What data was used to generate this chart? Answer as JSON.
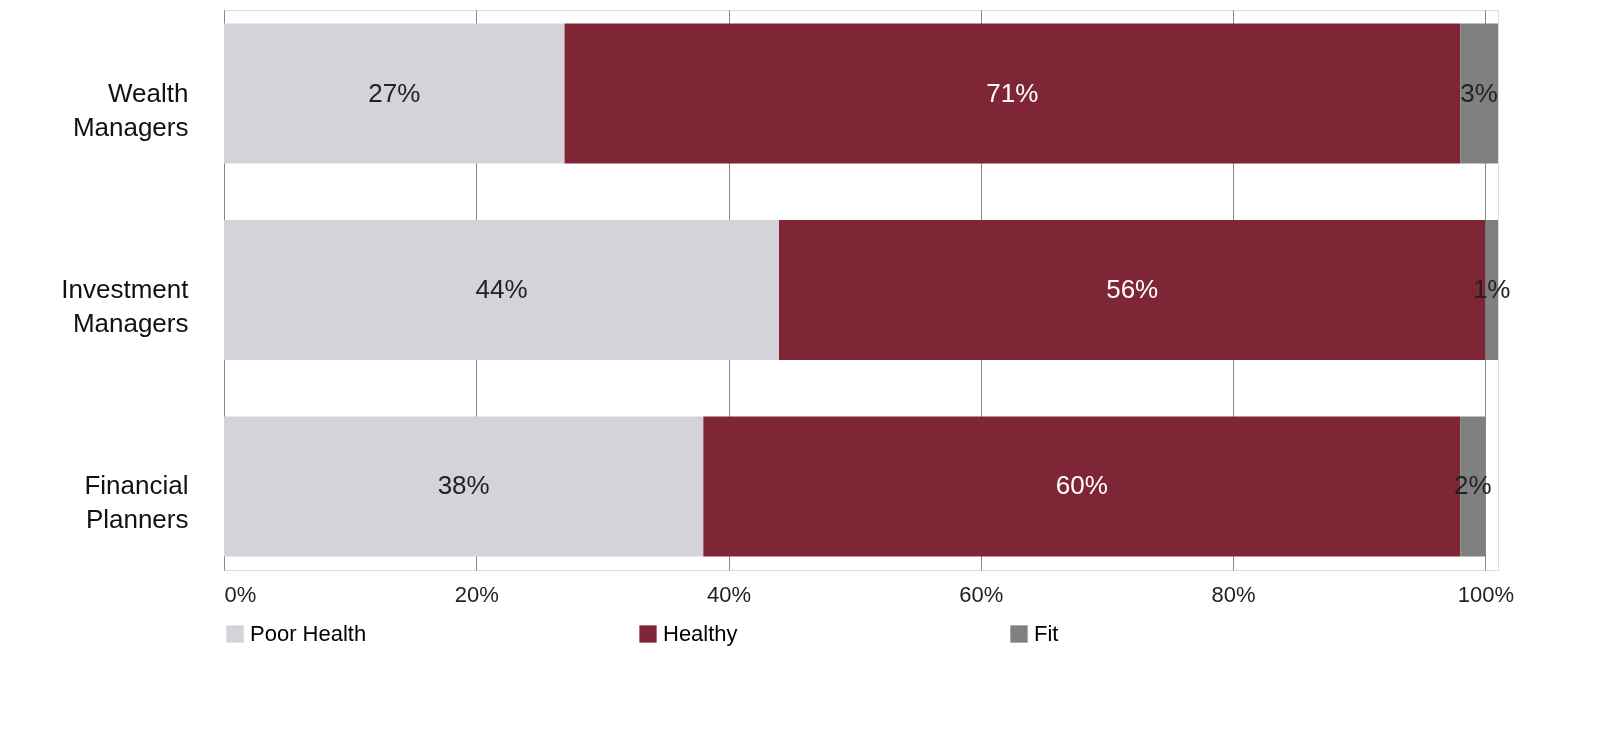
{
  "chart_data": {
    "type": "bar",
    "orientation": "horizontal",
    "stacked": true,
    "categories": [
      "Wealth Managers",
      "Investment Managers",
      "Financial Planners"
    ],
    "series": [
      {
        "name": "Poor Health",
        "color": "#d3d3d9",
        "values": [
          27,
          44,
          38
        ],
        "value_labels": [
          "27%",
          "44%",
          "38%"
        ]
      },
      {
        "name": "Healthy",
        "color": "#7f2636",
        "values": [
          71,
          56,
          60
        ],
        "value_labels": [
          "71%",
          "56%",
          "60%"
        ]
      },
      {
        "name": "Fit",
        "color": "#808080",
        "values": [
          3,
          1,
          2
        ],
        "value_labels": [
          "3%",
          "1%",
          "2%"
        ]
      }
    ],
    "xlim": [
      0,
      101
    ],
    "xticks": [
      {
        "value": 0,
        "label": "0%"
      },
      {
        "value": 20,
        "label": "20%"
      },
      {
        "value": 40,
        "label": "40%"
      },
      {
        "value": 60,
        "label": "60%"
      },
      {
        "value": 80,
        "label": "80%"
      },
      {
        "value": 100,
        "label": "100%"
      }
    ],
    "grid": "x",
    "legend": "bottom"
  }
}
